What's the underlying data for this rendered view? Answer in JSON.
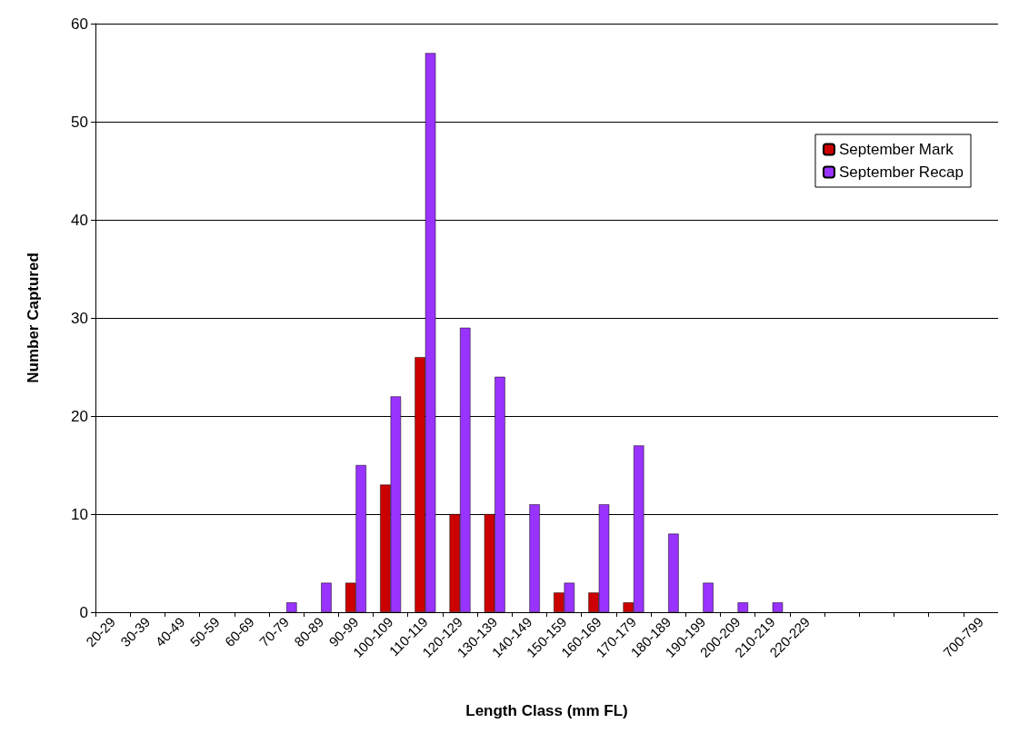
{
  "chart_data": {
    "type": "bar",
    "xlabel": "Length Class (mm FL)",
    "ylabel": "Number Captured",
    "categories": [
      "20-29",
      "30-39",
      "40-49",
      "50-59",
      "60-69",
      "70-79",
      "80-89",
      "90-99",
      "100-109",
      "110-119",
      "120-129",
      "130-139",
      "140-149",
      "150-159",
      "160-169",
      "170-179",
      "180-189",
      "190-199",
      "200-209",
      "210-219",
      "220-229",
      null,
      null,
      null,
      null,
      "700-799"
    ],
    "series": [
      {
        "name": "September Mark",
        "color": "#cc0000",
        "values": [
          0,
          0,
          0,
          0,
          0,
          0,
          0,
          3,
          13,
          26,
          10,
          10,
          0,
          2,
          2,
          1,
          0,
          0,
          0,
          0,
          0,
          0,
          0,
          0,
          0,
          0
        ]
      },
      {
        "name": "September Recap",
        "color": "#9933ff",
        "values": [
          0,
          0,
          0,
          0,
          0,
          1,
          3,
          15,
          22,
          57,
          29,
          24,
          11,
          3,
          11,
          17,
          8,
          3,
          1,
          1,
          0,
          0,
          0,
          0,
          0,
          0
        ]
      }
    ],
    "ylim": [
      0,
      60
    ],
    "yticks": [
      0,
      10,
      20,
      30,
      40,
      50,
      60
    ],
    "grid": "y",
    "legend": "top right"
  }
}
